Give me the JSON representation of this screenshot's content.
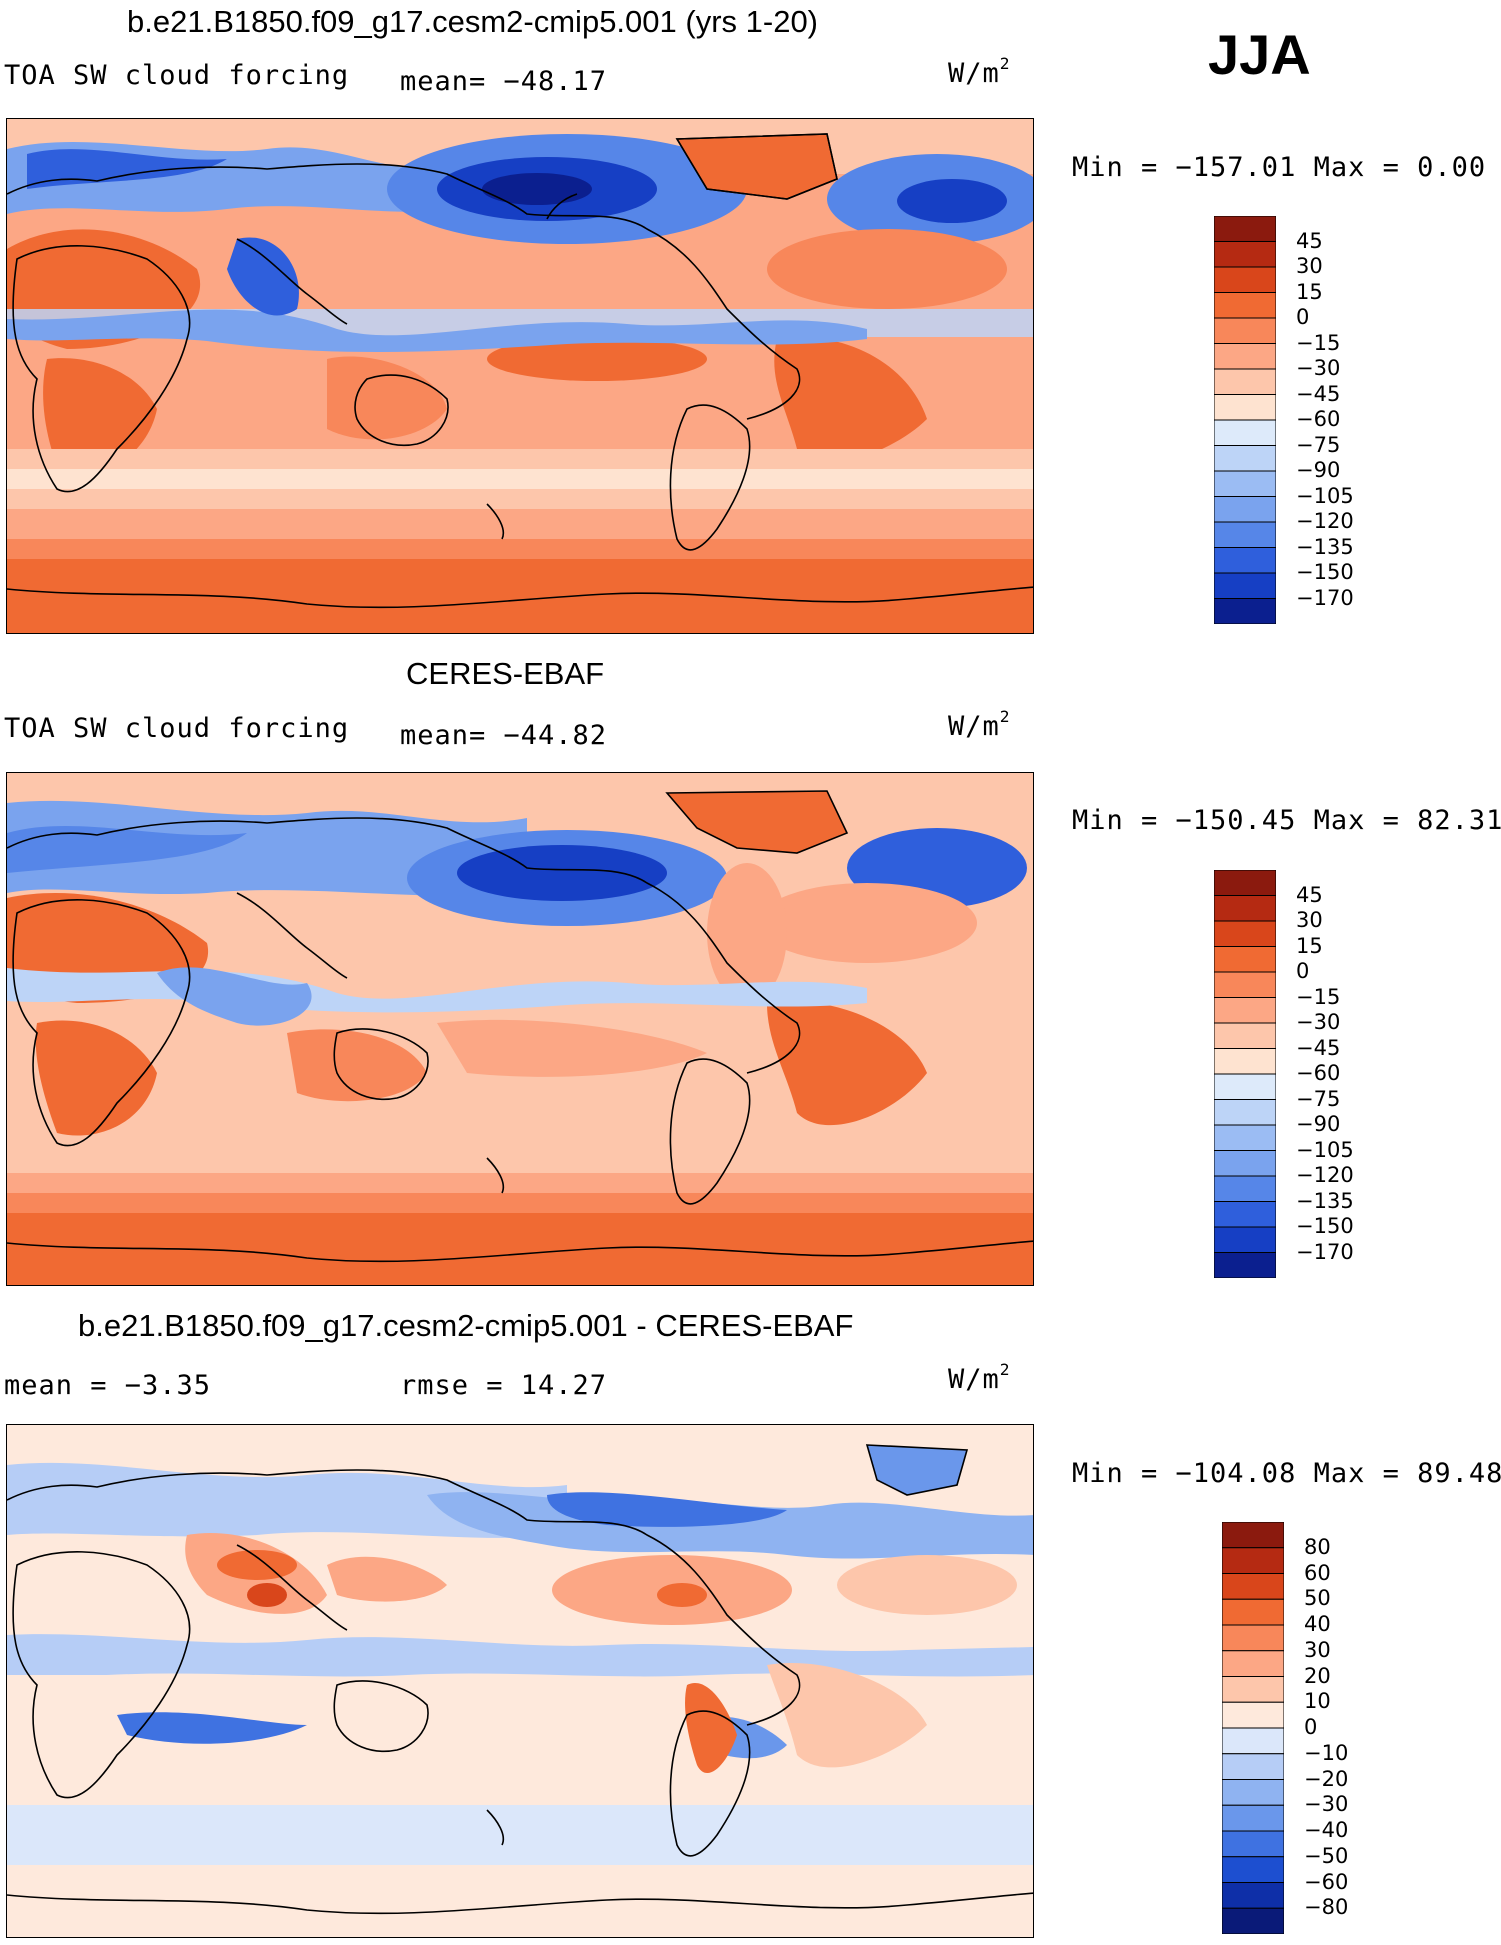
{
  "season": "JJA",
  "panels": [
    {
      "title": "b.e21.B1850.f09_g17.cesm2-cmip5.001 (yrs 1-20)",
      "left_label": "TOA SW cloud forcing",
      "center_label": "mean= −48.17",
      "units_base": "W/m",
      "units_exp": "2",
      "minmax": "Min = −157.01  Max =    0.00",
      "colorbar": {
        "labels": [
          "45",
          "30",
          "15",
          "0",
          "−15",
          "−30",
          "−45",
          "−60",
          "−75",
          "−90",
          "−105",
          "−120",
          "−135",
          "−150",
          "−170"
        ],
        "colors": [
          "#8b1a0e",
          "#b52a12",
          "#d9461b",
          "#f06a33",
          "#f8875a",
          "#fca785",
          "#fdc6ab",
          "#fee3d0",
          "#ddeafa",
          "#bdd4f7",
          "#9bbcf3",
          "#7aa3ee",
          "#5686e8",
          "#2f5fdc",
          "#163fc4",
          "#0b1f8f"
        ]
      }
    },
    {
      "title": "CERES-EBAF",
      "left_label": "TOA SW cloud forcing",
      "center_label": "mean= −44.82",
      "units_base": "W/m",
      "units_exp": "2",
      "minmax": "Min = −150.45  Max =   82.31",
      "colorbar": {
        "labels": [
          "45",
          "30",
          "15",
          "0",
          "−15",
          "−30",
          "−45",
          "−60",
          "−75",
          "−90",
          "−105",
          "−120",
          "−135",
          "−150",
          "−170"
        ],
        "colors": [
          "#8b1a0e",
          "#b52a12",
          "#d9461b",
          "#f06a33",
          "#f8875a",
          "#fca785",
          "#fdc6ab",
          "#fee3d0",
          "#ddeafa",
          "#bdd4f7",
          "#9bbcf3",
          "#7aa3ee",
          "#5686e8",
          "#2f5fdc",
          "#163fc4",
          "#0b1f8f"
        ]
      }
    },
    {
      "title": "b.e21.B1850.f09_g17.cesm2-cmip5.001 - CERES-EBAF",
      "left_label": "mean =   −3.35",
      "center_label": "rmse =   14.27",
      "units_base": "W/m",
      "units_exp": "2",
      "minmax": "Min = −104.08  Max =   89.48",
      "colorbar": {
        "labels": [
          "80",
          "60",
          "50",
          "40",
          "30",
          "20",
          "10",
          "0",
          "−10",
          "−20",
          "−30",
          "−40",
          "−50",
          "−60",
          "−80"
        ],
        "colors": [
          "#8b1a0e",
          "#b52a12",
          "#d9461b",
          "#f06a33",
          "#f8875a",
          "#fca785",
          "#fdc6ab",
          "#fee9dc",
          "#dbe7fa",
          "#b6cdf6",
          "#8fb3f1",
          "#6a97eb",
          "#3f72e1",
          "#1d4fd0",
          "#0e2fa8",
          "#0a1a78"
        ]
      }
    }
  ]
}
